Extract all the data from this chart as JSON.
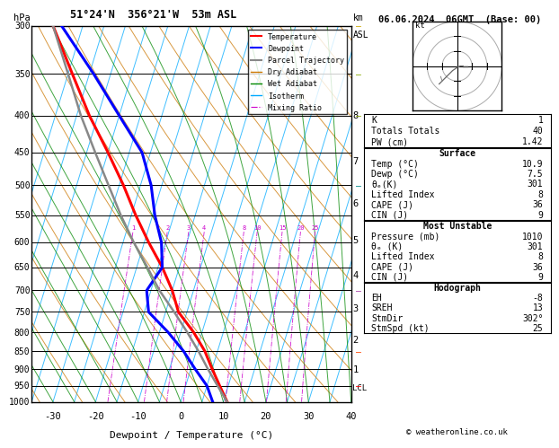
{
  "title_left": "51°24'N  356°21'W  53m ASL",
  "title_right": "06.06.2024  06GMT  (Base: 00)",
  "xlabel": "Dewpoint / Temperature (°C)",
  "pressure_levels": [
    300,
    350,
    400,
    450,
    500,
    550,
    600,
    650,
    700,
    750,
    800,
    850,
    900,
    950,
    1000
  ],
  "xlim": [
    -35,
    40
  ],
  "temp_profile": {
    "pressure": [
      1000,
      950,
      900,
      850,
      800,
      750,
      700,
      650,
      600,
      550,
      500,
      450,
      400,
      350,
      300
    ],
    "temp": [
      10.9,
      8.0,
      5.0,
      2.0,
      -2.0,
      -7.0,
      -10.0,
      -14.0,
      -19.0,
      -24.0,
      -29.0,
      -35.0,
      -42.0,
      -49.0,
      -57.0
    ],
    "color": "#ff0000",
    "linewidth": 2.2
  },
  "dewpoint_profile": {
    "pressure": [
      1000,
      950,
      900,
      850,
      800,
      750,
      700,
      650,
      600,
      550,
      500,
      450,
      400,
      350,
      300
    ],
    "temp": [
      7.5,
      5.0,
      1.0,
      -3.0,
      -8.0,
      -14.0,
      -16.0,
      -14.0,
      -16.0,
      -19.5,
      -22.5,
      -27.0,
      -35.0,
      -44.0,
      -55.0
    ],
    "color": "#0000ff",
    "linewidth": 2.2
  },
  "parcel_profile": {
    "pressure": [
      1000,
      950,
      900,
      850,
      800,
      750,
      700,
      650,
      600,
      550,
      500,
      450,
      400,
      350,
      300
    ],
    "temp": [
      10.9,
      7.5,
      4.0,
      0.5,
      -3.5,
      -8.0,
      -13.0,
      -17.5,
      -22.5,
      -27.5,
      -32.5,
      -38.0,
      -44.0,
      -50.0,
      -57.0
    ],
    "color": "#888888",
    "linewidth": 1.8
  },
  "isotherms": {
    "color": "#00aaff",
    "linewidth": 0.7,
    "alpha": 0.75
  },
  "dry_adiabats": {
    "color": "#cc7700",
    "linewidth": 0.7,
    "alpha": 0.75
  },
  "wet_adiabats": {
    "color": "#008800",
    "linewidth": 0.7,
    "alpha": 0.75
  },
  "mixing_ratios": {
    "values": [
      1,
      2,
      3,
      4,
      8,
      10,
      15,
      20,
      25
    ],
    "color": "#cc00cc",
    "linewidth": 0.6,
    "alpha": 0.9
  },
  "km_pressures": {
    "1": 900,
    "2": 820,
    "3": 742,
    "4": 666,
    "5": 596,
    "6": 530,
    "7": 462,
    "8": 400
  },
  "lcl_pressure": 955,
  "pmin": 300,
  "pmax": 1000,
  "skew_factor": 27.0,
  "legend_entries": [
    {
      "label": "Temperature",
      "color": "#ff0000",
      "lw": 1.5,
      "ls": "-"
    },
    {
      "label": "Dewpoint",
      "color": "#0000ff",
      "lw": 1.5,
      "ls": "-"
    },
    {
      "label": "Parcel Trajectory",
      "color": "#888888",
      "lw": 1.5,
      "ls": "-"
    },
    {
      "label": "Dry Adiabat",
      "color": "#cc7700",
      "lw": 1.0,
      "ls": "-"
    },
    {
      "label": "Wet Adiabat",
      "color": "#008800",
      "lw": 1.0,
      "ls": "-"
    },
    {
      "label": "Isotherm",
      "color": "#00aaff",
      "lw": 1.0,
      "ls": "-"
    },
    {
      "label": "Mixing Ratio",
      "color": "#cc00cc",
      "lw": 0.8,
      "ls": "-."
    }
  ],
  "info_K": "1",
  "info_TT": "40",
  "info_PW": "1.42",
  "surface_temp": "10.9",
  "surface_dewp": "7.5",
  "surface_thetae": "301",
  "surface_li": "8",
  "surface_cape": "36",
  "surface_cin": "9",
  "mu_pres": "1010",
  "mu_thetae": "301",
  "mu_li": "8",
  "mu_cape": "36",
  "mu_cin": "9",
  "hodo_eh": "-8",
  "hodo_sreh": "13",
  "hodo_stmdir": "302°",
  "hodo_stmspd": "25",
  "copyright": "© weatheronline.co.uk",
  "bg_color": "#ffffff",
  "wind_barb_colors": [
    "#ff0000",
    "#ff4400",
    "#aa44aa",
    "#008888",
    "#88aa00",
    "#88aa00",
    "#ccaa00"
  ],
  "wind_barb_pressures": [
    950,
    850,
    700,
    500,
    400,
    350,
    300
  ]
}
